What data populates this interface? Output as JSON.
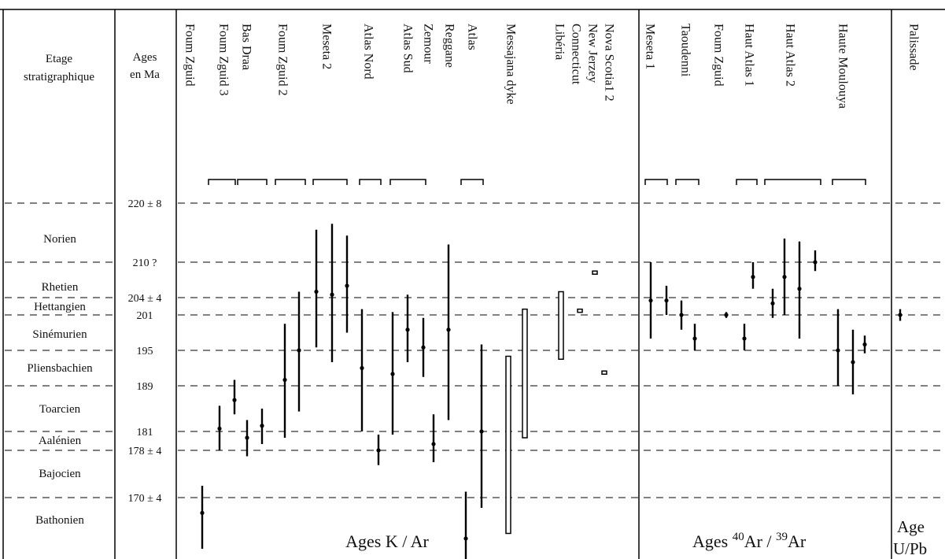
{
  "header": {
    "stage_label": [
      "Etage",
      "stratigraphique"
    ],
    "age_label": [
      "Ages",
      "en Ma"
    ]
  },
  "chart_data": {
    "type": "range-chart",
    "yaxis": {
      "ticks": [
        {
          "label": "220 ± 8",
          "value": 220
        },
        {
          "label": "210 ?",
          "value": 210
        },
        {
          "label": "204 ± 4",
          "value": 204
        },
        {
          "label": "201",
          "value": 201
        },
        {
          "label": "195",
          "value": 195
        },
        {
          "label": "189",
          "value": 189
        },
        {
          "label": "181",
          "value": 181
        },
        {
          "label": "178 ± 4",
          "value": 178
        },
        {
          "label": "170 ± 4",
          "value": 170
        }
      ]
    },
    "stages": [
      {
        "name": "Norien",
        "top": 220,
        "bottom": 210
      },
      {
        "name": "Rhetien",
        "top": 210,
        "bottom": 204
      },
      {
        "name": "Hettangien",
        "top": 204,
        "bottom": 201
      },
      {
        "name": "Sinémurien",
        "top": 201,
        "bottom": 195
      },
      {
        "name": "Pliensbachien",
        "top": 195,
        "bottom": 189
      },
      {
        "name": "Toarcien",
        "top": 189,
        "bottom": 181
      },
      {
        "name": "Aalénien",
        "top": 181,
        "bottom": 178
      },
      {
        "name": "Bajocien",
        "top": 178,
        "bottom": 170
      },
      {
        "name": "Bathonien",
        "top": 170,
        "bottom": 164
      }
    ],
    "sections": [
      {
        "name": "Ages K / Ar"
      },
      {
        "name_parts": [
          "Ages ",
          "40",
          "Ar / ",
          "39",
          "Ar"
        ]
      },
      {
        "name_parts": [
          "Age",
          "U/Pb"
        ]
      }
    ],
    "columns": [
      {
        "label": "Foum Zguid",
        "section": 0
      },
      {
        "label": "Foum Zguid 3",
        "section": 0
      },
      {
        "label": "Bas Draa",
        "section": 0
      },
      {
        "label": "Foum Zguid 2",
        "section": 0
      },
      {
        "label": "Meseta 2",
        "section": 0
      },
      {
        "label": "Atlas Nord",
        "section": 0
      },
      {
        "label": "Atlas Sud",
        "section": 0
      },
      {
        "label": "Zemour",
        "section": 0
      },
      {
        "label": "Reggane",
        "section": 0
      },
      {
        "label": "Atlas",
        "section": 0
      },
      {
        "label": "Messajana dyke",
        "section": 0
      },
      {
        "label": "Libéria",
        "section": 0
      },
      {
        "label": "Connecticut",
        "section": 0
      },
      {
        "label": "New Jerzey",
        "section": 0
      },
      {
        "label": "Nova Scotia1  2",
        "section": 0
      },
      {
        "label": "Meseta 1",
        "section": 1
      },
      {
        "label": "Taoudenni",
        "section": 1
      },
      {
        "label": "Foum Zguid",
        "section": 1
      },
      {
        "label": "Haut Atlas 1",
        "section": 1
      },
      {
        "label": "Haut Atlas 2",
        "section": 1
      },
      {
        "label": "Haute Moulouya",
        "section": 1
      },
      {
        "label": "Palissade",
        "section": 2
      }
    ],
    "ranges": [
      {
        "column": 0,
        "age": 168.5,
        "min": 165,
        "max": 172,
        "style": "line"
      },
      {
        "column": 1,
        "age": 181.5,
        "min": 178,
        "max": 185.5,
        "style": "line"
      },
      {
        "column": 1,
        "age": 186.5,
        "min": 184,
        "max": 190,
        "style": "line"
      },
      {
        "column": 2,
        "age": 180,
        "min": 177,
        "max": 183,
        "style": "line"
      },
      {
        "column": 2,
        "age": 182,
        "min": 179,
        "max": 185,
        "style": "line"
      },
      {
        "column": 3,
        "age": 190,
        "min": 180,
        "max": 199.5,
        "style": "line"
      },
      {
        "column": 3,
        "age": 195,
        "min": 184.5,
        "max": 205,
        "style": "line"
      },
      {
        "column": 4,
        "age": 205,
        "min": 195.5,
        "max": 215.5,
        "style": "line"
      },
      {
        "column": 4,
        "age": 204.5,
        "min": 193,
        "max": 216.5,
        "style": "line"
      },
      {
        "column": 4,
        "age": 206,
        "min": 198,
        "max": 214.5,
        "style": "line"
      },
      {
        "column": 5,
        "age": 192,
        "min": 181,
        "max": 202,
        "style": "line"
      },
      {
        "column": 5,
        "age": 178,
        "min": 175.5,
        "max": 180.5,
        "style": "line"
      },
      {
        "column": 6,
        "age": 191,
        "min": 180.5,
        "max": 201.5,
        "style": "line"
      },
      {
        "column": 6,
        "age": 198.5,
        "min": 193,
        "max": 204.5,
        "style": "line"
      },
      {
        "column": 6,
        "age": 195.5,
        "min": 190.5,
        "max": 200.5,
        "style": "line"
      },
      {
        "column": 7,
        "age": 179,
        "min": 176,
        "max": 184,
        "style": "line"
      },
      {
        "column": 8,
        "age": 198.5,
        "min": 183,
        "max": 213,
        "style": "line"
      },
      {
        "column": 8,
        "age": 166,
        "min": 163,
        "max": 171,
        "style": "line"
      },
      {
        "column": 9,
        "age": 181,
        "min": 169,
        "max": 196,
        "style": "line"
      },
      {
        "column": 10,
        "age": null,
        "min": 166.5,
        "max": 194,
        "style": "box"
      },
      {
        "column": 10,
        "age": null,
        "min": 180,
        "max": 202,
        "style": "box"
      },
      {
        "column": 11,
        "age": null,
        "min": 193.5,
        "max": 205,
        "style": "box"
      },
      {
        "column": 12,
        "age": null,
        "min": 201.5,
        "max": 202,
        "style": "box"
      },
      {
        "column": 13,
        "age": null,
        "min": 208,
        "max": 208.5,
        "style": "box"
      },
      {
        "column": 14,
        "age": null,
        "min": 191,
        "max": 191.5,
        "style": "box"
      },
      {
        "column": 15,
        "age": 203.5,
        "min": 197,
        "max": 210,
        "style": "line"
      },
      {
        "column": 15,
        "age": 203.5,
        "min": 201,
        "max": 206,
        "style": "line"
      },
      {
        "column": 16,
        "age": 201,
        "min": 198.5,
        "max": 203.5,
        "style": "line"
      },
      {
        "column": 16,
        "age": 197,
        "min": 195,
        "max": 199.5,
        "style": "line"
      },
      {
        "column": 17,
        "age": 201,
        "min": 200.5,
        "max": 201.5,
        "style": "line"
      },
      {
        "column": 18,
        "age": 197,
        "min": 195,
        "max": 199.5,
        "style": "line"
      },
      {
        "column": 18,
        "age": 207.5,
        "min": 205.5,
        "max": 210,
        "style": "line"
      },
      {
        "column": 19,
        "age": 203,
        "min": 200.5,
        "max": 205.5,
        "style": "line"
      },
      {
        "column": 19,
        "age": 207.5,
        "min": 201,
        "max": 214,
        "style": "line"
      },
      {
        "column": 19,
        "age": 205.5,
        "min": 197,
        "max": 213.5,
        "style": "line"
      },
      {
        "column": 19,
        "age": 210,
        "min": 208.5,
        "max": 212,
        "style": "line"
      },
      {
        "column": 20,
        "age": 195,
        "min": 189,
        "max": 202,
        "style": "line"
      },
      {
        "column": 20,
        "age": 193,
        "min": 187.5,
        "max": 198.5,
        "style": "line"
      },
      {
        "column": 20,
        "age": 196,
        "min": 194.5,
        "max": 197.5,
        "style": "line"
      },
      {
        "column": 21,
        "age": 201,
        "min": 200,
        "max": 202,
        "style": "line"
      }
    ],
    "grid": true
  }
}
